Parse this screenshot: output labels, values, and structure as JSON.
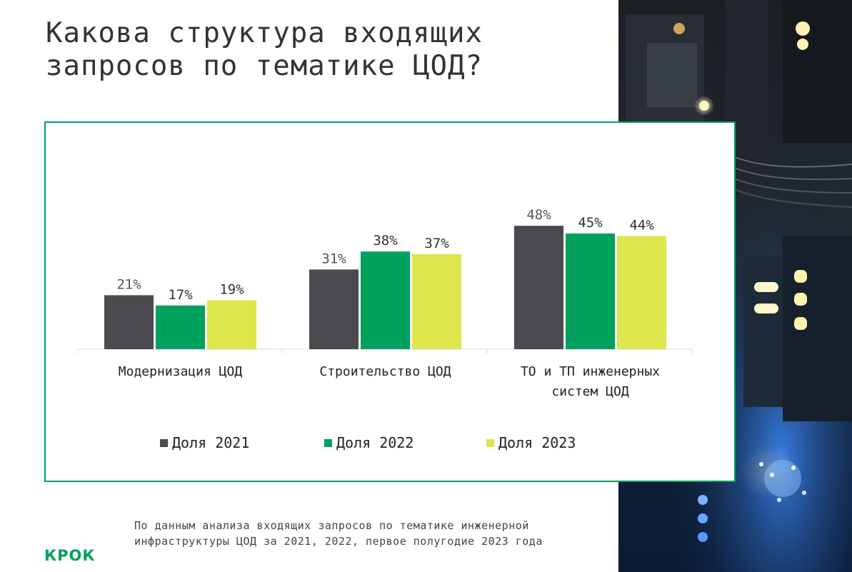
{
  "title": "Какова структура входящих запросов по тематике ЦОД?",
  "colors": {
    "accent": "#00a15c",
    "series_2021": "#4a4a4f",
    "series_2022": "#00a15c",
    "series_2023": "#dde64a"
  },
  "chart_data": {
    "type": "bar",
    "categories": [
      "Модернизация ЦОД",
      "Строительство ЦОД",
      "ТО и ТП инженерных систем ЦОД"
    ],
    "category_lines": [
      [
        "Модернизация ЦОД"
      ],
      [
        "Строительство ЦОД"
      ],
      [
        "ТО и ТП инженерных",
        "систем ЦОД"
      ]
    ],
    "series": [
      {
        "name": "Доля 2021",
        "values": [
          21,
          31,
          48
        ],
        "labels": [
          "21%",
          "31%",
          "48%"
        ]
      },
      {
        "name": "Доля 2022",
        "values": [
          17,
          38,
          45
        ],
        "labels": [
          "17%",
          "38%",
          "45%"
        ]
      },
      {
        "name": "Доля 2023",
        "values": [
          19,
          37,
          44
        ],
        "labels": [
          "19%",
          "37%",
          "44%"
        ]
      }
    ],
    "ylim": [
      0,
      50
    ],
    "legend_position": "bottom",
    "grid": false
  },
  "legend": [
    "Доля 2021",
    "Доля 2022",
    "Доля 2023"
  ],
  "footnote": "По данным анализа входящих запросов по тематике инженерной инфраструктуры ЦОД за 2021, 2022, первое полугодие 2023 года",
  "logo": "КРОК"
}
